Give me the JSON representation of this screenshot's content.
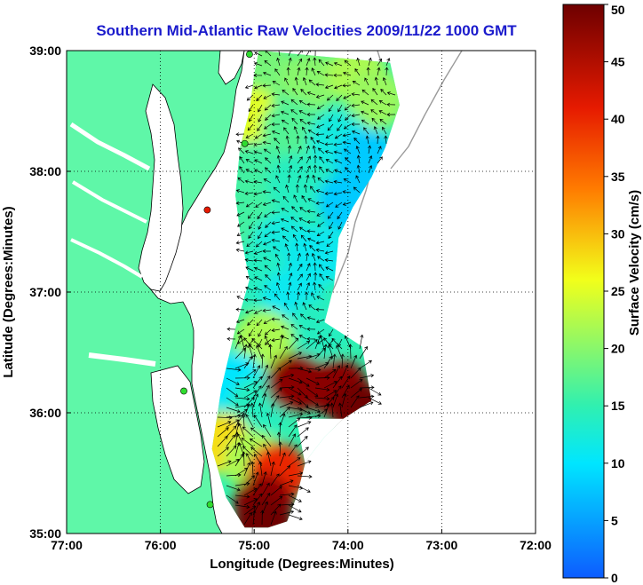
{
  "chart_data": {
    "type": "heatmap",
    "title": "Southern Mid-Atlantic Raw Velocities 2009/11/22 1000 GMT",
    "xlabel": "Longitude (Degrees:Minutes)",
    "ylabel": "Latitude (Degrees:Minutes)",
    "xlim": [
      -77,
      -72
    ],
    "ylim": [
      35,
      39
    ],
    "x_ticks": [
      -77,
      -76,
      -75,
      -74,
      -73,
      -72
    ],
    "x_tick_labels": [
      "77:00",
      "76:00",
      "75:00",
      "74:00",
      "73:00",
      "72:00"
    ],
    "y_ticks": [
      35,
      36,
      37,
      38,
      39
    ],
    "y_tick_labels": [
      "35:00",
      "36:00",
      "37:00",
      "38:00",
      "39:00"
    ],
    "grid": "dotted",
    "colorbar": {
      "label": "Surface Velocity (cm/s)",
      "range": [
        0,
        50
      ],
      "ticks": [
        0,
        5,
        10,
        15,
        20,
        25,
        30,
        35,
        40,
        45,
        50
      ],
      "tick_labels": [
        "0",
        "5",
        "10",
        "15",
        "20",
        "25",
        "30",
        "35",
        "40",
        "45",
        "50"
      ],
      "colormap": [
        "#0d5cff",
        "#00e6ff",
        "#30f0b0",
        "#f2ff1a",
        "#ff7a00",
        "#e61a00",
        "#6e0000"
      ]
    },
    "speed_field": [
      {
        "lon": -74.9,
        "lat": 38.85,
        "speed": 19
      },
      {
        "lon": -74.4,
        "lat": 38.75,
        "speed": 20
      },
      {
        "lon": -73.9,
        "lat": 38.8,
        "speed": 22
      },
      {
        "lon": -73.7,
        "lat": 38.6,
        "speed": 21
      },
      {
        "lon": -75.05,
        "lat": 38.45,
        "speed": 25
      },
      {
        "lon": -74.6,
        "lat": 38.35,
        "speed": 17
      },
      {
        "lon": -74.1,
        "lat": 38.25,
        "speed": 12
      },
      {
        "lon": -73.8,
        "lat": 38.1,
        "speed": 8
      },
      {
        "lon": -75.0,
        "lat": 38.0,
        "speed": 16
      },
      {
        "lon": -74.55,
        "lat": 37.9,
        "speed": 14
      },
      {
        "lon": -74.0,
        "lat": 37.75,
        "speed": 8
      },
      {
        "lon": -75.1,
        "lat": 37.6,
        "speed": 16
      },
      {
        "lon": -74.7,
        "lat": 37.4,
        "speed": 12
      },
      {
        "lon": -74.3,
        "lat": 37.3,
        "speed": 11
      },
      {
        "lon": -75.0,
        "lat": 37.15,
        "speed": 14
      },
      {
        "lon": -74.6,
        "lat": 36.95,
        "speed": 11
      },
      {
        "lon": -74.3,
        "lat": 36.7,
        "speed": 14
      },
      {
        "lon": -74.9,
        "lat": 36.6,
        "speed": 22
      },
      {
        "lon": -75.2,
        "lat": 36.25,
        "speed": 10
      },
      {
        "lon": -74.95,
        "lat": 36.05,
        "speed": 14
      },
      {
        "lon": -74.55,
        "lat": 36.25,
        "speed": 48
      },
      {
        "lon": -74.1,
        "lat": 36.2,
        "speed": 48
      },
      {
        "lon": -73.85,
        "lat": 36.0,
        "speed": 50
      },
      {
        "lon": -75.35,
        "lat": 35.75,
        "speed": 28
      },
      {
        "lon": -75.0,
        "lat": 35.6,
        "speed": 22
      },
      {
        "lon": -74.75,
        "lat": 35.5,
        "speed": 40
      },
      {
        "lon": -74.9,
        "lat": 35.25,
        "speed": 48
      },
      {
        "lon": -74.9,
        "lat": 35.05,
        "speed": 50
      }
    ],
    "stations": [
      {
        "lon": -75.05,
        "lat": 38.97
      },
      {
        "lon": -75.1,
        "lat": 38.23
      },
      {
        "lon": -75.5,
        "lat": 37.68
      },
      {
        "lon": -75.75,
        "lat": 36.18
      },
      {
        "lon": -75.47,
        "lat": 35.24
      }
    ]
  }
}
